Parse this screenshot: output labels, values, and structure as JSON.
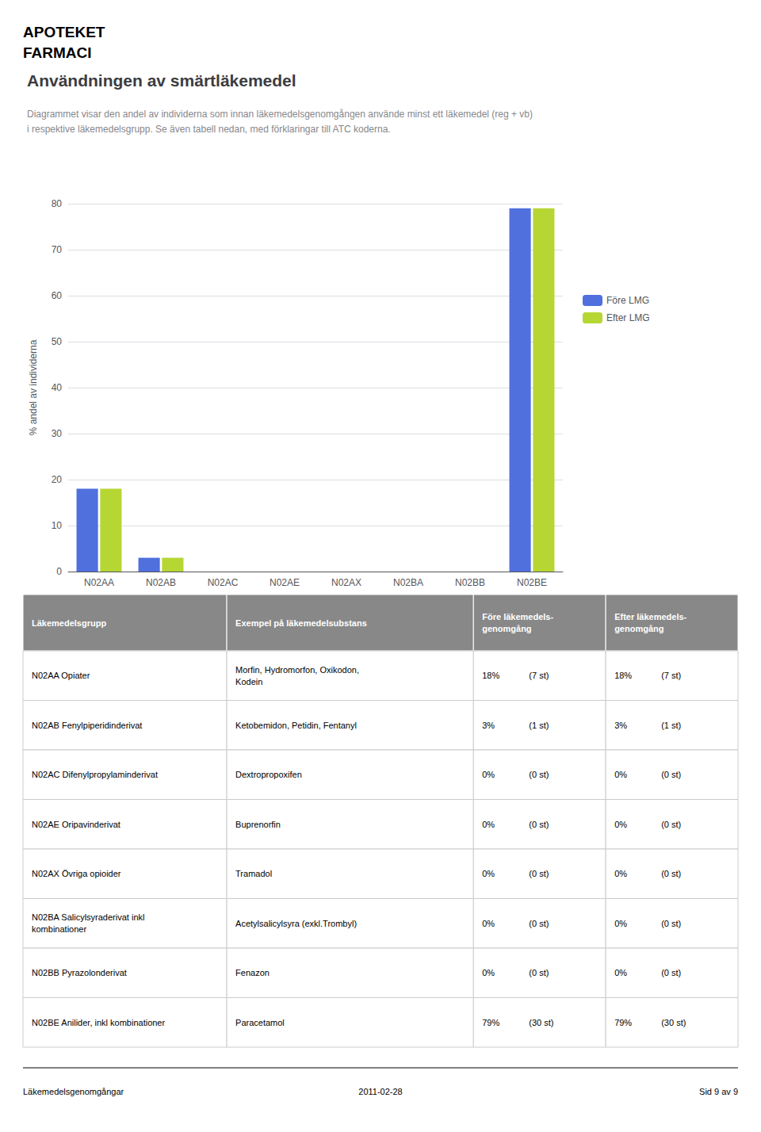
{
  "chart_data": {
    "type": "bar",
    "title": "Användningen av smärtläkemedel",
    "subtitle": "Diagrammet visar den andel av individerna som innan läkemedelsgenomgången använde minst ett läkemedel (reg + vb)\ni respektive läkemedelsgrupp. Se även tabell nedan, med förklaringar till ATC koderna.",
    "categories": [
      "N02AA",
      "N02AB",
      "N02AC",
      "N02AE",
      "N02AX",
      "N02BA",
      "N02BB",
      "N02BE"
    ],
    "series": [
      {
        "name": "Före LMG",
        "values": [
          18,
          3,
          0,
          0,
          0,
          0,
          0,
          79
        ]
      },
      {
        "name": "Efter LMG",
        "values": [
          18,
          3,
          0,
          0,
          0,
          0,
          0,
          79
        ]
      }
    ],
    "ylabel": "% andel av individerna",
    "ylim": [
      0,
      80
    ],
    "yticks": [
      0,
      10,
      20,
      30,
      40,
      50,
      60,
      70,
      80
    ],
    "grid": true,
    "legend": "right",
    "annotations": [
      "APOTEKET",
      "FARMACI",
      "Läkemedelsgenomgångar",
      "2011-02-28",
      "Sid 9 av 9"
    ],
    "table": {
      "color": "#888888",
      "headers": [
        "Läkemedelsgrupp",
        "Exempel på läkemedelsubstans",
        "Före läkemedels-\ngenomgång",
        "Efter läkemedels-\ngenomgång"
      ],
      "rows": [
        [
          "N02AA Opiater",
          "Morfin, Hydromorfon, Oxikodon,\nKodein",
          "18%",
          "(7 st)",
          "18%",
          "(7 st)"
        ],
        [
          "N02AB Fenylpiperidinderivat",
          "Ketobemidon, Petidin, Fentanyl",
          "3%",
          "(1 st)",
          "3%",
          "(1 st)"
        ],
        [
          "N02AC Difenylpropylaminderivat",
          "Dextropropoxifen",
          "0%",
          "(0 st)",
          "0%",
          "(0 st)"
        ],
        [
          "N02AE Oripavinderivat",
          "Buprenorfin",
          "0%",
          "(0 st)",
          "0%",
          "(0 st)"
        ],
        [
          "N02AX Övriga opioider",
          "Tramadol",
          "0%",
          "(0 st)",
          "0%",
          "(0 st)"
        ],
        [
          "N02BA Salicylsyraderivat inkl\nkombinationer",
          "Acetylsalicylsyra (exkl.Trombyl)",
          "0%",
          "(0 st)",
          "0%",
          "(0 st)"
        ],
        [
          "N02BB Pyrazolonderivat",
          "Fenazon",
          "0%",
          "(0 st)",
          "0%",
          "(0 st)"
        ],
        [
          "N02BE Anilider, inkl kombinationer",
          "Paracetamol",
          "79%",
          "(30 st)",
          "79%",
          "(30 st)"
        ]
      ]
    }
  }
}
